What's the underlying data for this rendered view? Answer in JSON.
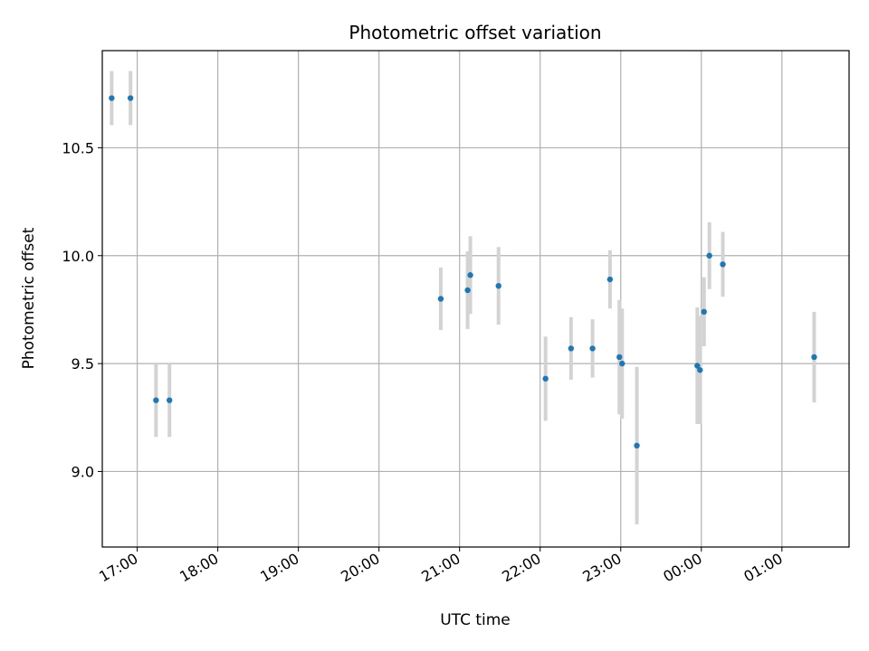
{
  "chart_data": {
    "type": "scatter",
    "title": "Photometric offset variation",
    "xlabel": "UTC time",
    "ylabel": "Photometric offset",
    "x_ticks": [
      "17:00",
      "18:00",
      "19:00",
      "20:00",
      "21:00",
      "22:00",
      "23:00",
      "00:00",
      "01:00"
    ],
    "y_ticks": [
      "9.0",
      "9.5",
      "10.0",
      "10.5"
    ],
    "xlim": [
      "16:34",
      "25:50"
    ],
    "ylim": [
      8.65,
      10.95
    ],
    "grid": true,
    "marker_color": "#1f77b4",
    "errorbar_color": "#d3d3d3",
    "points": [
      {
        "time": "16:41",
        "offset": 10.73,
        "error": 0.125
      },
      {
        "time": "16:55",
        "offset": 10.73,
        "error": 0.125
      },
      {
        "time": "17:14",
        "offset": 9.33,
        "error": 0.17
      },
      {
        "time": "17:24",
        "offset": 9.33,
        "error": 0.17
      },
      {
        "time": "20:46",
        "offset": 9.8,
        "error": 0.145
      },
      {
        "time": "21:06",
        "offset": 9.84,
        "error": 0.18
      },
      {
        "time": "21:08",
        "offset": 9.91,
        "error": 0.18
      },
      {
        "time": "21:29",
        "offset": 9.86,
        "error": 0.18
      },
      {
        "time": "22:04",
        "offset": 9.43,
        "error": 0.195
      },
      {
        "time": "22:23",
        "offset": 9.57,
        "error": 0.145
      },
      {
        "time": "22:39",
        "offset": 9.57,
        "error": 0.135
      },
      {
        "time": "22:52",
        "offset": 9.89,
        "error": 0.135
      },
      {
        "time": "22:59",
        "offset": 9.53,
        "error": 0.265
      },
      {
        "time": "23:01",
        "offset": 9.5,
        "error": 0.255
      },
      {
        "time": "23:12",
        "offset": 9.12,
        "error": 0.365
      },
      {
        "time": "23:57",
        "offset": 9.49,
        "error": 0.27
      },
      {
        "time": "23:59",
        "offset": 9.47,
        "error": 0.25
      },
      {
        "time": "24:02",
        "offset": 9.74,
        "error": 0.16
      },
      {
        "time": "24:06",
        "offset": 10.0,
        "error": 0.155
      },
      {
        "time": "24:16",
        "offset": 9.96,
        "error": 0.15
      },
      {
        "time": "25:24",
        "offset": 9.53,
        "error": 0.21
      }
    ]
  }
}
